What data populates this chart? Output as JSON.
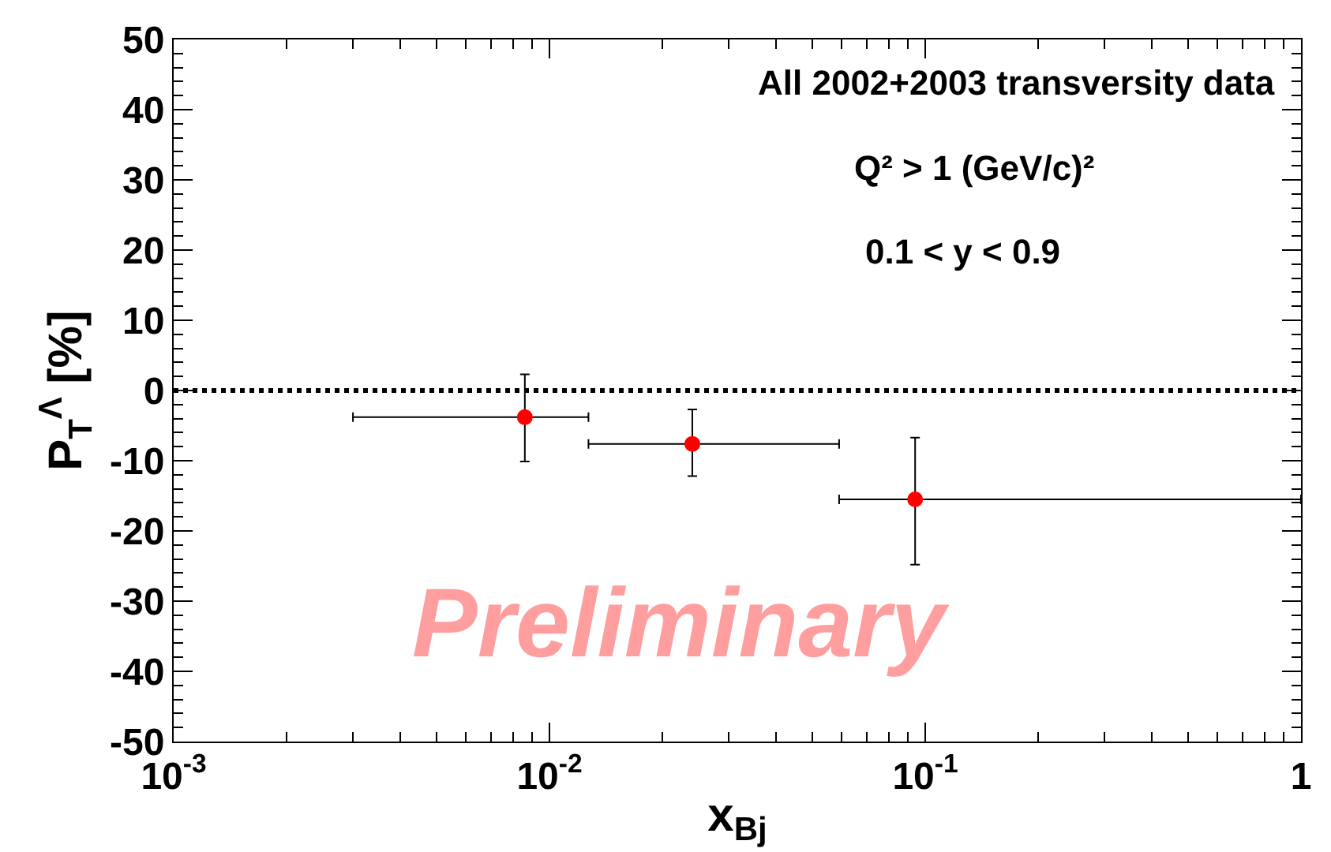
{
  "chart_data": {
    "type": "scatter",
    "x": [
      0.0086,
      0.024,
      0.094
    ],
    "values": [
      -3.8,
      -7.6,
      -15.5
    ],
    "errors": [
      [
        -10.1,
        2.3
      ],
      [
        -12.2,
        -2.7
      ],
      [
        -24.8,
        -6.7
      ]
    ],
    "xerrors": [
      [
        0.003,
        0.0127
      ],
      [
        0.0127,
        0.059
      ],
      [
        0.059,
        1
      ]
    ],
    "color": "#ff0000",
    "marker": "circle",
    "log": "x",
    "xlim": [
      0.001,
      1
    ],
    "xticks": [
      {
        "value": 0.001,
        "label": "10$^{-3}$"
      },
      {
        "value": 0.01,
        "label": "10$^{-2}$"
      },
      {
        "value": 0.1,
        "label": "10$^{-1}$"
      },
      1
    ],
    "ylim": [
      -50,
      50
    ],
    "yticks": [
      -50,
      -40,
      -30,
      -20,
      -10,
      0,
      10,
      20,
      30,
      40,
      50
    ],
    "xlabel": "x$_{Bj}$",
    "ylabel": "P$_{T}$$^{Λ}$ [%]",
    "grid": false,
    "ref_lines": [
      {
        "axis": "y",
        "value": 0,
        "color": "#000000",
        "line_style": "dotted"
      }
    ],
    "annotations": [
      "All 2002+2003 transversity data",
      "Q² > 1 (GeV/c)²",
      "0.1 < y < 0.9",
      "Preliminary"
    ]
  }
}
